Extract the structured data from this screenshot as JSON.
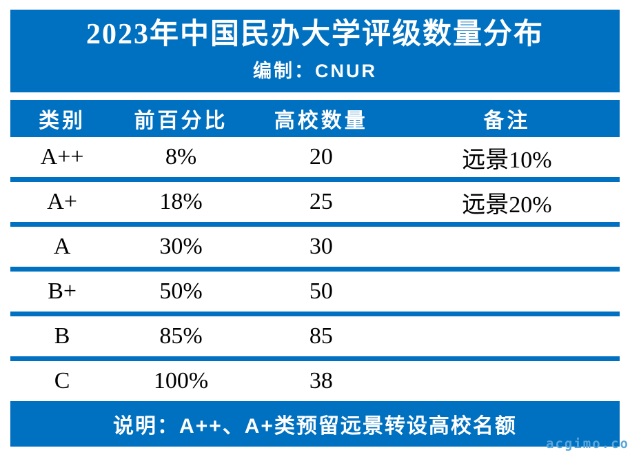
{
  "colors": {
    "banner_blue": "#0070C0",
    "banner_text": "#ffffff",
    "body_text": "#000000",
    "watermark_blue": "#5aa7dc",
    "page_background": "#ffffff"
  },
  "chart_data": {
    "type": "table",
    "title": "2023年中国民办大学评级数量分布",
    "subtitle": "编制：CNUR",
    "columns": [
      "类别",
      "前百分比",
      "高校数量",
      "备注"
    ],
    "rows": [
      [
        "A++",
        "8%",
        "20",
        "远景10%"
      ],
      [
        "A+",
        "18%",
        "25",
        "远景20%"
      ],
      [
        "A",
        "30%",
        "30",
        ""
      ],
      [
        "B+",
        "50%",
        "50",
        ""
      ],
      [
        "B",
        "85%",
        "85",
        ""
      ],
      [
        "C",
        "100%",
        "38",
        ""
      ]
    ],
    "note": "说明：A++、A+类预留远景转设高校名额"
  },
  "watermark": "acgimo.co"
}
